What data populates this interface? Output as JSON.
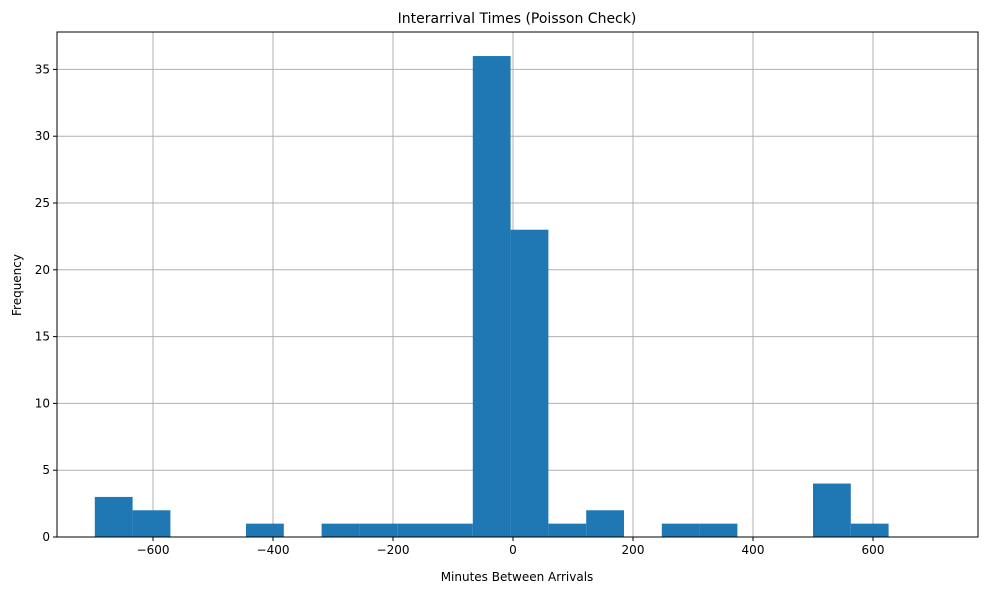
{
  "chart_data": {
    "type": "bar",
    "title": "Interarrival Times (Poisson Check)",
    "xlabel": "Minutes Between Arrivals",
    "ylabel": "Frequency",
    "xlim": [
      -760,
      775
    ],
    "ylim": [
      0,
      37.8
    ],
    "grid": true,
    "x_ticks": [
      -600,
      -400,
      -200,
      0,
      200,
      400,
      600
    ],
    "x_tick_labels": [
      "−600",
      "−400",
      "−200",
      "0",
      "200",
      "400",
      "600"
    ],
    "y_ticks": [
      0,
      5,
      10,
      15,
      20,
      25,
      30,
      35
    ],
    "y_tick_labels": [
      "0",
      "5",
      "10",
      "15",
      "20",
      "25",
      "30",
      "35"
    ],
    "bin_edges": [
      -697,
      -634,
      -571,
      -508,
      -445,
      -382,
      -319,
      -256,
      -193,
      -130,
      -67,
      -4,
      59,
      122,
      185,
      248,
      311,
      374,
      437,
      500,
      563,
      626,
      689
    ],
    "values": [
      3,
      2,
      0,
      0,
      1,
      0,
      1,
      1,
      1,
      1,
      36,
      23,
      1,
      2,
      0,
      1,
      1,
      0,
      0,
      4,
      1,
      0
    ],
    "bar_color": "#1f77b4"
  }
}
